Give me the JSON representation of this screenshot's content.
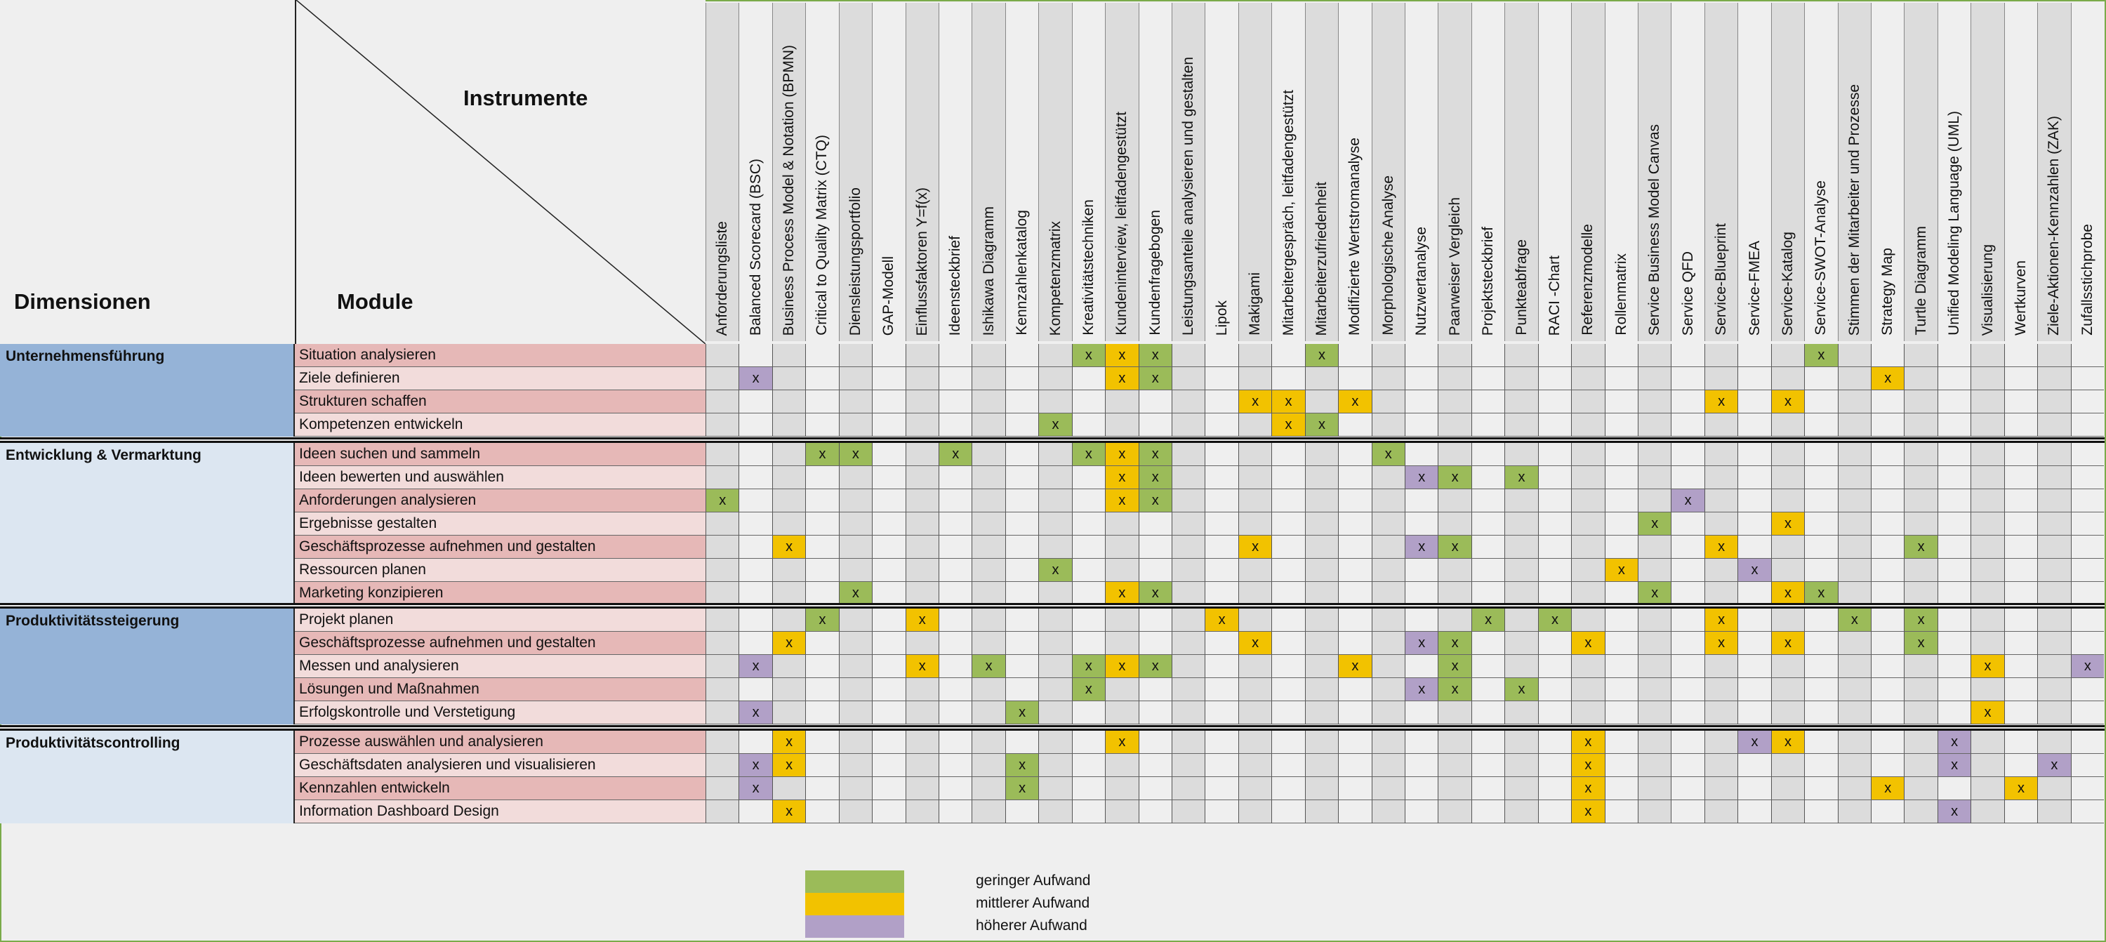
{
  "header": {
    "instruments_label": "Instrumente",
    "modules_label": "Module",
    "dimensions_label": "Dimensionen"
  },
  "mark_symbol": "x",
  "colors": {
    "low": "#9bbb59",
    "medium": "#f2c200",
    "high": "#b1a0c7",
    "dim_dark": "#95b3d7",
    "dim_light": "#dce6f1",
    "module_dark": "#e6b8b7",
    "module_light": "#f2dcdb",
    "col_dark": "#dcdcdc",
    "col_light": "#efefef",
    "border": "#7aab4a"
  },
  "instruments": [
    "Anforderungsliste",
    "Balanced Scorecard (BSC)",
    "Business Process Model  & Notation (BPMN)",
    "Critical to Quality Matrix (CTQ)",
    "Diensleistungsportfolio",
    "GAP-Modell",
    "Einflussfaktoren Y=f(x)",
    "Ideensteckbrief",
    "Ishikawa Diagramm",
    "Kennzahlenkatalog",
    "Kompetenzmatrix",
    "Kreativitätstechniken",
    "Kundeninterview, leitfadengestützt",
    "Kundenfragebogen",
    "Leistungsanteile analysieren und gestalten",
    "Lipok",
    "Makigami",
    "Mitarbeitergespräch, leitfadengestützt",
    "Mitarbeiterzufriedenheit",
    "Modifizierte Wertstromanalyse",
    "Morphologische Analyse",
    "Nutzwertanalyse",
    "Paarweiser Vergleich",
    "Projektsteckbrief",
    "Punkteabfrage",
    "RACI -Chart",
    "Referenzmodelle",
    "Rollenmatrix",
    "Service Business Model Canvas",
    "Service QFD",
    "Service-Blueprint",
    "Service-FMEA",
    "Service-Katalog",
    "Service-SWOT-Analyse",
    "Stimmen der Mitarbeiter und Prozesse",
    "Strategy Map",
    "Turtle Diagramm",
    "Unified Modeling Language (UML)",
    "Visualisierung",
    "Wertkurven",
    "Ziele-Aktionen-Kennzahlen (ZAK)",
    "Zufallsstichprobe"
  ],
  "groups": [
    {
      "dimension": "Unternehmensführung",
      "rows": [
        {
          "module": "Situation analysieren",
          "marks": {
            "11": "low",
            "12": "medium",
            "13": "low",
            "18": "low",
            "33": "low"
          }
        },
        {
          "module": "Ziele definieren",
          "marks": {
            "1": "high",
            "12": "medium",
            "13": "low",
            "35": "medium"
          }
        },
        {
          "module": "Strukturen schaffen",
          "marks": {
            "16": "medium",
            "17": "medium",
            "19": "medium",
            "30": "medium",
            "32": "medium"
          }
        },
        {
          "module": "Kompetenzen entwickeln",
          "marks": {
            "10": "low",
            "17": "medium",
            "18": "low"
          }
        }
      ]
    },
    {
      "dimension": "Entwicklung & Vermarktung",
      "rows": [
        {
          "module": "Ideen suchen und sammeln",
          "marks": {
            "3": "low",
            "4": "low",
            "7": "low",
            "11": "low",
            "12": "medium",
            "13": "low",
            "20": "low"
          }
        },
        {
          "module": "Ideen bewerten und auswählen",
          "marks": {
            "12": "medium",
            "13": "low",
            "21": "high",
            "22": "low",
            "24": "low"
          }
        },
        {
          "module": "Anforderungen analysieren",
          "marks": {
            "0": "low",
            "12": "medium",
            "13": "low",
            "29": "high"
          }
        },
        {
          "module": "Ergebnisse gestalten",
          "marks": {
            "28": "low",
            "32": "medium"
          }
        },
        {
          "module": "Geschäftsprozesse aufnehmen und gestalten",
          "marks": {
            "2": "medium",
            "16": "medium",
            "21": "high",
            "22": "low",
            "30": "medium",
            "36": "low"
          }
        },
        {
          "module": "Ressourcen planen",
          "marks": {
            "10": "low",
            "27": "medium",
            "31": "high"
          }
        },
        {
          "module": "Marketing konzipieren",
          "marks": {
            "4": "low",
            "12": "medium",
            "13": "low",
            "28": "low",
            "32": "medium",
            "33": "low"
          }
        }
      ]
    },
    {
      "dimension": "Produktivitätssteigerung",
      "rows": [
        {
          "module": "Projekt planen",
          "marks": {
            "3": "low",
            "6": "medium",
            "15": "medium",
            "23": "low",
            "25": "low",
            "30": "medium",
            "34": "low",
            "36": "low"
          }
        },
        {
          "module": "Geschäftsprozesse aufnehmen und gestalten",
          "marks": {
            "2": "medium",
            "16": "medium",
            "21": "high",
            "22": "low",
            "26": "medium",
            "30": "medium",
            "32": "medium",
            "36": "low"
          }
        },
        {
          "module": "Messen und analysieren",
          "marks": {
            "1": "high",
            "6": "medium",
            "8": "low",
            "11": "low",
            "12": "medium",
            "13": "low",
            "19": "medium",
            "22": "low",
            "38": "medium",
            "41": "high"
          }
        },
        {
          "module": "Lösungen und Maßnahmen",
          "marks": {
            "11": "low",
            "21": "high",
            "22": "low",
            "24": "low"
          }
        },
        {
          "module": "Erfolgskontrolle und Verstetigung",
          "marks": {
            "1": "high",
            "9": "low",
            "38": "medium"
          }
        }
      ]
    },
    {
      "dimension": "Produktivitätscontrolling",
      "rows": [
        {
          "module": "Prozesse auswählen und analysieren",
          "marks": {
            "2": "medium",
            "12": "medium",
            "26": "medium",
            "31": "high",
            "32": "medium",
            "37": "high"
          }
        },
        {
          "module": "Geschäftsdaten analysieren und visualisieren",
          "marks": {
            "1": "high",
            "2": "medium",
            "9": "low",
            "26": "medium",
            "37": "high",
            "40": "high"
          }
        },
        {
          "module": "Kennzahlen entwickeln",
          "marks": {
            "1": "high",
            "9": "low",
            "26": "medium",
            "35": "medium",
            "39": "medium"
          }
        },
        {
          "module": "Information Dashboard Design",
          "marks": {
            "2": "medium",
            "26": "medium",
            "37": "high"
          }
        }
      ]
    }
  ],
  "legend": [
    {
      "level": "low",
      "label": "geringer  Aufwand"
    },
    {
      "level": "medium",
      "label": "mittlerer Aufwand"
    },
    {
      "level": "high",
      "label": "höherer Aufwand"
    }
  ]
}
